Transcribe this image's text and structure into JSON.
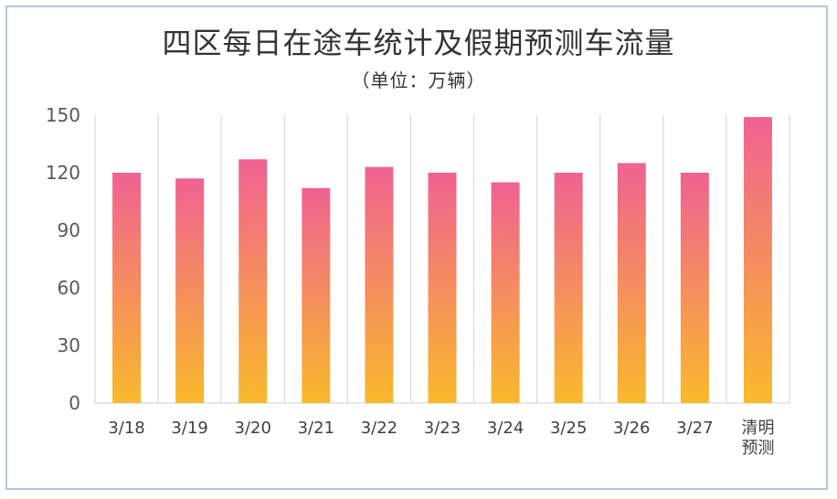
{
  "chart_data": {
    "type": "bar",
    "title": "四区每日在途车统计及假期预测车流量",
    "subtitle": "（单位：万辆）",
    "categories": [
      [
        "3/18"
      ],
      [
        "3/19"
      ],
      [
        "3/20"
      ],
      [
        "3/21"
      ],
      [
        "3/22"
      ],
      [
        "3/23"
      ],
      [
        "3/24"
      ],
      [
        "3/25"
      ],
      [
        "3/26"
      ],
      [
        "3/27"
      ],
      [
        "清明",
        "预测"
      ]
    ],
    "values": [
      120,
      117,
      127,
      112,
      123,
      120,
      115,
      120,
      125,
      120,
      149
    ],
    "ylim": [
      0,
      150
    ],
    "yticks": [
      0,
      30,
      60,
      90,
      120,
      150
    ],
    "grid": "vertical-separators",
    "legend": "none",
    "colors": {
      "bar_top": "#f06292",
      "bar_bottom": "#f9b92b",
      "grid": "#d9d9d9",
      "frame": "#b3c7e0"
    }
  }
}
